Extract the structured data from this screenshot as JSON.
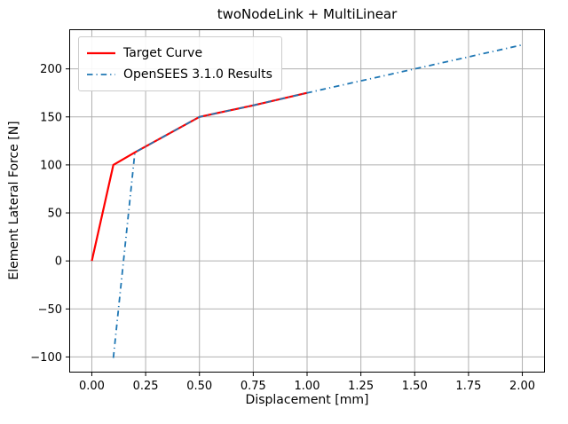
{
  "chart_data": {
    "type": "line",
    "title": "twoNodeLink + MultiLinear",
    "xlabel": "Displacement [mm]",
    "ylabel": "Element Lateral Force [N]",
    "xlim": [
      -0.105,
      2.105
    ],
    "ylim": [
      -116.25,
      241.25
    ],
    "grid": true,
    "grid_color": "#b0b0b0",
    "spine_color": "#000000",
    "legend_position": "upper-left",
    "xticks": {
      "values": [
        0.0,
        0.25,
        0.5,
        0.75,
        1.0,
        1.25,
        1.5,
        1.75,
        2.0
      ],
      "labels": [
        "0.00",
        "0.25",
        "0.50",
        "0.75",
        "1.00",
        "1.25",
        "1.50",
        "1.75",
        "2.00"
      ]
    },
    "yticks": {
      "values": [
        -100,
        -50,
        0,
        50,
        100,
        150,
        200
      ],
      "labels": [
        "−100",
        "−50",
        "0",
        "50",
        "100",
        "150",
        "200"
      ]
    },
    "series": [
      {
        "name": "Target Curve",
        "color": "#ff0000",
        "style": "solid",
        "width": 2.2,
        "x": [
          0.0,
          0.1,
          0.2,
          0.5,
          0.75,
          1.0
        ],
        "y": [
          0,
          100,
          113,
          150,
          162,
          175
        ]
      },
      {
        "name": "OpenSEES 3.1.0 Results",
        "color": "#1f77b4",
        "style": "dashdot",
        "width": 1.8,
        "x": [
          0.1,
          0.2,
          0.5,
          0.75,
          1.0,
          2.0
        ],
        "y": [
          -101,
          113,
          150,
          162,
          175,
          225
        ]
      }
    ]
  }
}
